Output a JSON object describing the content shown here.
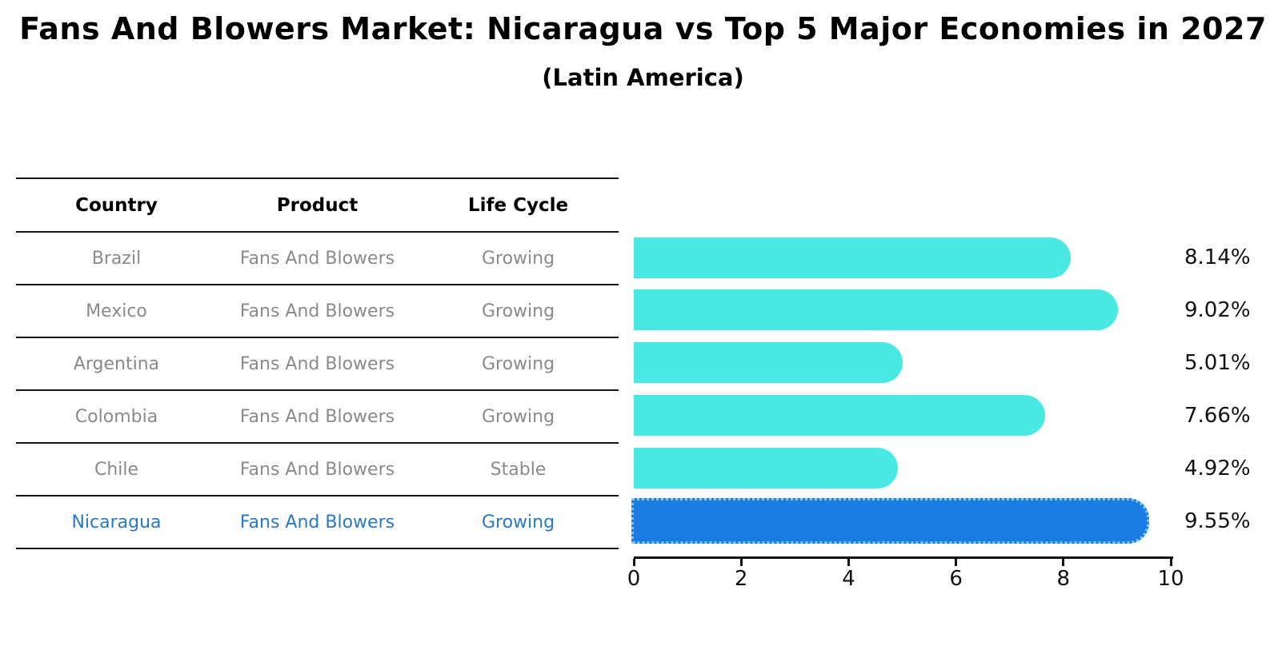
{
  "title": "Fans And Blowers Market: Nicaragua vs Top 5 Major Economies in 2027",
  "subtitle": "(Latin America)",
  "table": {
    "headers": [
      "Country",
      "Product",
      "Life Cycle"
    ],
    "rows": [
      {
        "country": "Brazil",
        "product": "Fans And Blowers",
        "life_cycle": "Growing",
        "highlight": false
      },
      {
        "country": "Mexico",
        "product": "Fans And Blowers",
        "life_cycle": "Growing",
        "highlight": false
      },
      {
        "country": "Argentina",
        "product": "Fans And Blowers",
        "life_cycle": "Growing",
        "highlight": false
      },
      {
        "country": "Colombia",
        "product": "Fans And Blowers",
        "life_cycle": "Growing",
        "highlight": false
      },
      {
        "country": "Chile",
        "product": "Fans And Blowers",
        "life_cycle": "Stable",
        "highlight": false
      },
      {
        "country": "Nicaragua",
        "product": "Fans And Blowers",
        "life_cycle": "Growing",
        "highlight": true
      }
    ]
  },
  "chart_data": {
    "type": "bar",
    "orientation": "horizontal",
    "categories": [
      "Brazil",
      "Mexico",
      "Argentina",
      "Colombia",
      "Chile",
      "Nicaragua"
    ],
    "values": [
      8.14,
      9.02,
      5.01,
      7.66,
      4.92,
      9.55
    ],
    "value_labels": [
      "8.14%",
      "9.02%",
      "5.01%",
      "7.66%",
      "4.92%",
      "9.55%"
    ],
    "highlight_index": 5,
    "x_ticks": [
      0,
      2,
      4,
      6,
      8,
      10
    ],
    "xlim": [
      0,
      10
    ],
    "grid": false,
    "legend": false,
    "bar_color": "#49E8E2",
    "highlight_bar_color": "#1B7CE4",
    "highlight_border_color": "#7EC8F5",
    "highlight_text_color": "#2878C8"
  }
}
